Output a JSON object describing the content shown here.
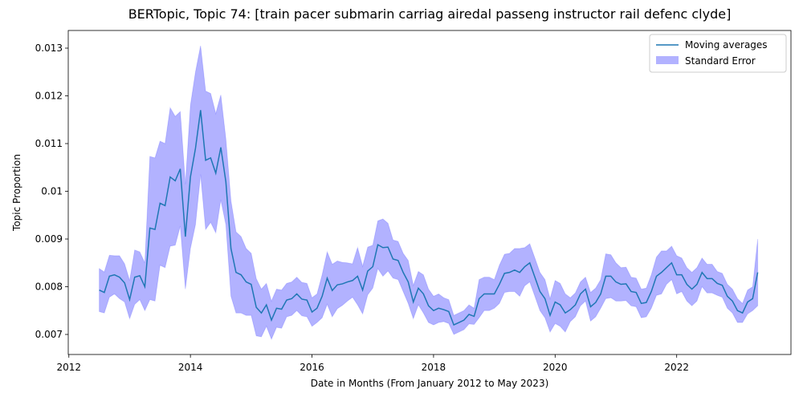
{
  "chart_data": {
    "type": "line",
    "title": "BERTopic, Topic 74: [train pacer submarin carriag airedal passeng instructor rail defenc clyde]",
    "x_label": "Date in Months (From January 2012 to May 2023)",
    "y_label": "Topic Proportion",
    "xlim": [
      2011.99,
      2023.88
    ],
    "ylim": [
      0.00658,
      0.01337
    ],
    "xticks": [
      2012,
      2014,
      2016,
      2018,
      2020,
      2022
    ],
    "yticks": [
      0.007,
      0.008,
      0.009,
      0.01,
      0.011,
      0.012,
      0.013
    ],
    "grid": false,
    "legend": "upper right",
    "x": [
      2012.5,
      2012.583,
      2012.667,
      2012.75,
      2012.833,
      2012.917,
      2013,
      2013.083,
      2013.167,
      2013.25,
      2013.333,
      2013.417,
      2013.5,
      2013.583,
      2013.667,
      2013.75,
      2013.833,
      2013.917,
      2014,
      2014.083,
      2014.167,
      2014.25,
      2014.333,
      2014.417,
      2014.5,
      2014.583,
      2014.667,
      2014.75,
      2014.833,
      2014.917,
      2015,
      2015.083,
      2015.167,
      2015.25,
      2015.333,
      2015.417,
      2015.5,
      2015.583,
      2015.667,
      2015.75,
      2015.833,
      2015.917,
      2016,
      2016.083,
      2016.167,
      2016.25,
      2016.333,
      2016.417,
      2016.5,
      2016.583,
      2016.667,
      2016.75,
      2016.833,
      2016.917,
      2017,
      2017.083,
      2017.167,
      2017.25,
      2017.333,
      2017.417,
      2017.5,
      2017.583,
      2017.667,
      2017.75,
      2017.833,
      2017.917,
      2018,
      2018.083,
      2018.167,
      2018.25,
      2018.333,
      2018.417,
      2018.5,
      2018.583,
      2018.667,
      2018.75,
      2018.833,
      2018.917,
      2019,
      2019.083,
      2019.167,
      2019.25,
      2019.333,
      2019.417,
      2019.5,
      2019.583,
      2019.667,
      2019.75,
      2019.833,
      2019.917,
      2020,
      2020.083,
      2020.167,
      2020.25,
      2020.333,
      2020.417,
      2020.5,
      2020.583,
      2020.667,
      2020.75,
      2020.833,
      2020.917,
      2021,
      2021.083,
      2021.167,
      2021.25,
      2021.333,
      2021.417,
      2021.5,
      2021.583,
      2021.667,
      2021.75,
      2021.833,
      2021.917,
      2022,
      2022.083,
      2022.167,
      2022.25,
      2022.333,
      2022.417,
      2022.5,
      2022.583,
      2022.667,
      2022.75,
      2022.833,
      2022.917,
      2023,
      2023.083,
      2023.167,
      2023.25,
      2023.333
    ],
    "series": [
      {
        "name": "Moving averages",
        "color": "#1f77b4",
        "values": [
          0.00793,
          0.00788,
          0.00822,
          0.00825,
          0.0082,
          0.00808,
          0.00773,
          0.0082,
          0.00823,
          0.008,
          0.00923,
          0.0092,
          0.00975,
          0.0097,
          0.0103,
          0.01022,
          0.01047,
          0.00905,
          0.0103,
          0.0109,
          0.0117,
          0.01065,
          0.0107,
          0.01038,
          0.01092,
          0.0102,
          0.0088,
          0.0083,
          0.00825,
          0.0081,
          0.00805,
          0.00757,
          0.00745,
          0.00762,
          0.0073,
          0.00755,
          0.00753,
          0.00772,
          0.00775,
          0.00785,
          0.00774,
          0.00772,
          0.00747,
          0.00755,
          0.0078,
          0.00818,
          0.00792,
          0.00804,
          0.00806,
          0.0081,
          0.00813,
          0.00822,
          0.00793,
          0.00833,
          0.00842,
          0.00888,
          0.00882,
          0.00883,
          0.00858,
          0.00855,
          0.0083,
          0.0081,
          0.00768,
          0.00797,
          0.00785,
          0.0076,
          0.0075,
          0.00755,
          0.00752,
          0.00748,
          0.0072,
          0.00725,
          0.0073,
          0.00742,
          0.00738,
          0.00775,
          0.00785,
          0.00785,
          0.00785,
          0.00805,
          0.00828,
          0.0083,
          0.00835,
          0.0083,
          0.00842,
          0.0085,
          0.0082,
          0.0079,
          0.00775,
          0.0074,
          0.00768,
          0.00762,
          0.00745,
          0.00752,
          0.00762,
          0.00785,
          0.00795,
          0.00758,
          0.00767,
          0.00785,
          0.00822,
          0.00822,
          0.0081,
          0.00805,
          0.00806,
          0.0079,
          0.00788,
          0.00765,
          0.00767,
          0.0079,
          0.00822,
          0.0083,
          0.0084,
          0.0085,
          0.00825,
          0.00825,
          0.00805,
          0.00795,
          0.00805,
          0.0083,
          0.00817,
          0.00817,
          0.00807,
          0.00803,
          0.0078,
          0.0077,
          0.0075,
          0.00745,
          0.00768,
          0.00775,
          0.0083
        ]
      },
      {
        "name": "Standard Error",
        "color": "#0000ff",
        "values": [
          0.00045,
          0.00043,
          0.00044,
          0.0004,
          0.00045,
          0.0004,
          0.0004,
          0.00057,
          0.0005,
          0.0005,
          0.0015,
          0.0015,
          0.0013,
          0.0013,
          0.00145,
          0.00135,
          0.0012,
          0.0011,
          0.0015,
          0.0016,
          0.00135,
          0.00145,
          0.00135,
          0.00125,
          0.0011,
          0.0009,
          0.001,
          0.00085,
          0.0008,
          0.0007,
          0.00065,
          0.0006,
          0.0005,
          0.00045,
          0.0004,
          0.0004,
          0.0004,
          0.00035,
          0.00035,
          0.00035,
          0.00035,
          0.00035,
          0.0003,
          0.0003,
          0.00045,
          0.00055,
          0.00055,
          0.0005,
          0.00045,
          0.0004,
          0.00035,
          0.0006,
          0.0005,
          0.0005,
          0.00045,
          0.0005,
          0.0006,
          0.0005,
          0.0004,
          0.0004,
          0.0004,
          0.00045,
          0.00035,
          0.00035,
          0.0004,
          0.00035,
          0.0003,
          0.0003,
          0.00025,
          0.00025,
          0.0002,
          0.0002,
          0.0002,
          0.0002,
          0.00017,
          0.0004,
          0.00035,
          0.00035,
          0.0003,
          0.0004,
          0.0004,
          0.0004,
          0.00045,
          0.0005,
          0.0004,
          0.0004,
          0.0004,
          0.0004,
          0.0004,
          0.00035,
          0.00045,
          0.00045,
          0.0004,
          0.00025,
          0.00025,
          0.00025,
          0.00025,
          0.0003,
          0.0003,
          0.0003,
          0.00047,
          0.00045,
          0.0004,
          0.00035,
          0.00035,
          0.0003,
          0.0003,
          0.0003,
          0.0003,
          0.00035,
          0.0004,
          0.00045,
          0.00035,
          0.00035,
          0.0004,
          0.00035,
          0.00035,
          0.00035,
          0.00035,
          0.0003,
          0.0003,
          0.0003,
          0.00025,
          0.00025,
          0.00025,
          0.00025,
          0.00025,
          0.0002,
          0.00025,
          0.00025,
          0.0007
        ]
      }
    ]
  }
}
